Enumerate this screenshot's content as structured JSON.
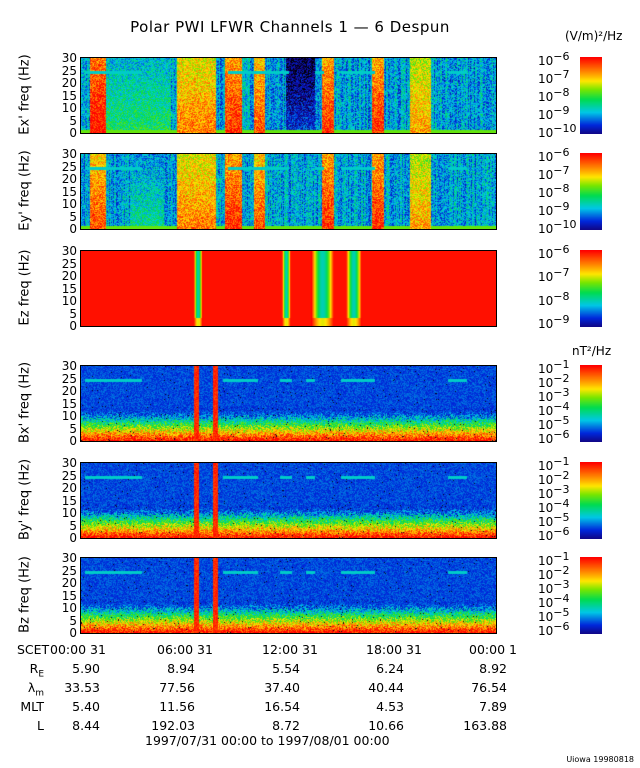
{
  "chart_data": {
    "type": "heatmap",
    "title": "Polar PWI LFWR Channels 1 — 6 Despun",
    "x_range_hours": [
      0,
      24
    ],
    "panels": [
      {
        "id": "ex",
        "ylabel": "Ex' freq (Hz)",
        "yticks": [
          "0",
          "5",
          "10",
          "15",
          "20",
          "25",
          "30"
        ],
        "ylim": [
          0,
          31
        ],
        "colorbar": {
          "unit": "(V/m)²/Hz",
          "ticks": [
            "-6",
            "-7",
            "-8",
            "-9",
            "-10"
          ],
          "range_log": [
            -10.3,
            -6
          ]
        },
        "kind": "E",
        "bursts": [
          [
            0.5,
            1.4,
            1.0
          ],
          [
            1.4,
            5.2,
            0.5
          ],
          [
            5.5,
            7.8,
            0.85
          ],
          [
            8.3,
            9.3,
            0.95
          ],
          [
            10.0,
            10.6,
            0.9
          ],
          [
            11.8,
            13.5,
            0.2
          ],
          [
            13.9,
            14.6,
            0.95
          ],
          [
            16.8,
            17.5,
            0.95
          ],
          [
            19.0,
            20.2,
            0.8
          ]
        ],
        "dashes": [
          [
            0.2,
            3.5
          ],
          [
            8.5,
            12
          ],
          [
            13.5,
            14
          ],
          [
            15,
            17
          ],
          [
            21.2,
            22.3
          ]
        ]
      },
      {
        "id": "ey",
        "ylabel": "Ey' freq (Hz)",
        "yticks": [
          "0",
          "5",
          "10",
          "15",
          "20",
          "25",
          "30"
        ],
        "ylim": [
          0,
          31
        ],
        "colorbar": {
          "unit": "",
          "ticks": [
            "-6",
            "-7",
            "-8",
            "-9",
            "-10"
          ],
          "range_log": [
            -10.3,
            -6
          ]
        },
        "kind": "E",
        "bursts": [
          [
            0.5,
            1.4,
            0.9
          ],
          [
            2.8,
            4.8,
            0.45
          ],
          [
            5.5,
            7.8,
            0.85
          ],
          [
            8.3,
            9.3,
            0.95
          ],
          [
            10.0,
            10.6,
            0.9
          ],
          [
            13.9,
            14.6,
            0.95
          ],
          [
            16.8,
            17.5,
            0.95
          ],
          [
            19.0,
            20.2,
            0.8
          ]
        ],
        "dashes": [
          [
            0.2,
            3.5
          ],
          [
            8.5,
            12
          ],
          [
            13.5,
            14
          ],
          [
            15,
            17
          ],
          [
            21.2,
            22.3
          ]
        ]
      },
      {
        "id": "ez",
        "ylabel": "Ez freq (Hz)",
        "yticks": [
          "0",
          "5",
          "10",
          "15",
          "20",
          "25",
          "30"
        ],
        "ylim": [
          0,
          31
        ],
        "colorbar": {
          "unit": "",
          "ticks": [
            "-6",
            "-7",
            "-8",
            "-9"
          ],
          "range_log": [
            -9.3,
            -6
          ]
        },
        "kind": "Z",
        "gaps": [
          [
            6.5,
            7.0
          ],
          [
            11.6,
            12.1
          ],
          [
            13.3,
            14.6
          ],
          [
            15.3,
            16.2
          ]
        ],
        "dashes": []
      },
      {
        "id": "bx",
        "ylabel": "Bx' freq (Hz)",
        "yticks": [
          "0",
          "5",
          "10",
          "15",
          "20",
          "25",
          "30"
        ],
        "ylim": [
          0,
          31
        ],
        "colorbar": {
          "unit": "nT²/Hz",
          "ticks": [
            "-1",
            "-2",
            "-3",
            "-4",
            "-5",
            "-6"
          ],
          "range_log": [
            -6.5,
            -1
          ]
        },
        "kind": "B",
        "bursts": [
          [
            6.5,
            6.8,
            1.0
          ],
          [
            7.6,
            7.9,
            1.0
          ]
        ],
        "dashes": [
          [
            0.2,
            3.5
          ],
          [
            8.2,
            10.2
          ],
          [
            11.5,
            12.2
          ],
          [
            13,
            13.5
          ],
          [
            15,
            17
          ],
          [
            21.2,
            22.3
          ]
        ]
      },
      {
        "id": "by",
        "ylabel": "By' freq (Hz)",
        "yticks": [
          "0",
          "5",
          "10",
          "15",
          "20",
          "25",
          "30"
        ],
        "ylim": [
          0,
          31
        ],
        "colorbar": {
          "unit": "",
          "ticks": [
            "-1",
            "-2",
            "-3",
            "-4",
            "-5",
            "-6"
          ],
          "range_log": [
            -6.5,
            -1
          ]
        },
        "kind": "B",
        "bursts": [
          [
            6.5,
            6.8,
            1.0
          ],
          [
            7.6,
            7.9,
            1.0
          ]
        ],
        "dashes": [
          [
            0.2,
            3.5
          ],
          [
            8.2,
            10.2
          ],
          [
            11.5,
            12.2
          ],
          [
            13,
            13.5
          ],
          [
            15,
            17
          ],
          [
            21.2,
            22.3
          ]
        ]
      },
      {
        "id": "bz",
        "ylabel": "Bz freq (Hz)",
        "yticks": [
          "0",
          "5",
          "10",
          "15",
          "20",
          "25",
          "30"
        ],
        "ylim": [
          0,
          31
        ],
        "colorbar": {
          "unit": "",
          "ticks": [
            "-1",
            "-2",
            "-3",
            "-4",
            "-5",
            "-6"
          ],
          "range_log": [
            -6.5,
            -1
          ]
        },
        "kind": "B",
        "bursts": [
          [
            6.5,
            6.8,
            1.0
          ],
          [
            7.6,
            7.9,
            1.0
          ]
        ],
        "dashes": [
          [
            0.2,
            3.5
          ],
          [
            8.2,
            10.2
          ],
          [
            11.5,
            12.2
          ],
          [
            13,
            13.5
          ],
          [
            15,
            17
          ],
          [
            21.2,
            22.3
          ]
        ]
      }
    ]
  },
  "axis": {
    "rows": [
      {
        "label": "SCET",
        "sub": "",
        "values": [
          "00:00 31",
          "06:00 31",
          "12:00 31",
          "18:00 31",
          "00:00  1"
        ]
      },
      {
        "label": "R",
        "sub": "E",
        "values": [
          "5.90",
          "8.94",
          "5.54",
          "6.24",
          "8.92"
        ]
      },
      {
        "label": "λ",
        "sub": "m",
        "values": [
          "33.53",
          "77.56",
          "37.40",
          "40.44",
          "76.54"
        ]
      },
      {
        "label": "MLT",
        "sub": "",
        "values": [
          "5.40",
          "11.56",
          "16.54",
          "4.53",
          "7.89"
        ]
      },
      {
        "label": "L",
        "sub": "",
        "values": [
          "8.44",
          "192.03",
          "8.72",
          "10.66",
          "163.88"
        ]
      }
    ],
    "range": "1997/07/31 00:00 to 1997/08/01 00:00"
  },
  "cb_base": "10",
  "credit": "Uiowa 19980818"
}
